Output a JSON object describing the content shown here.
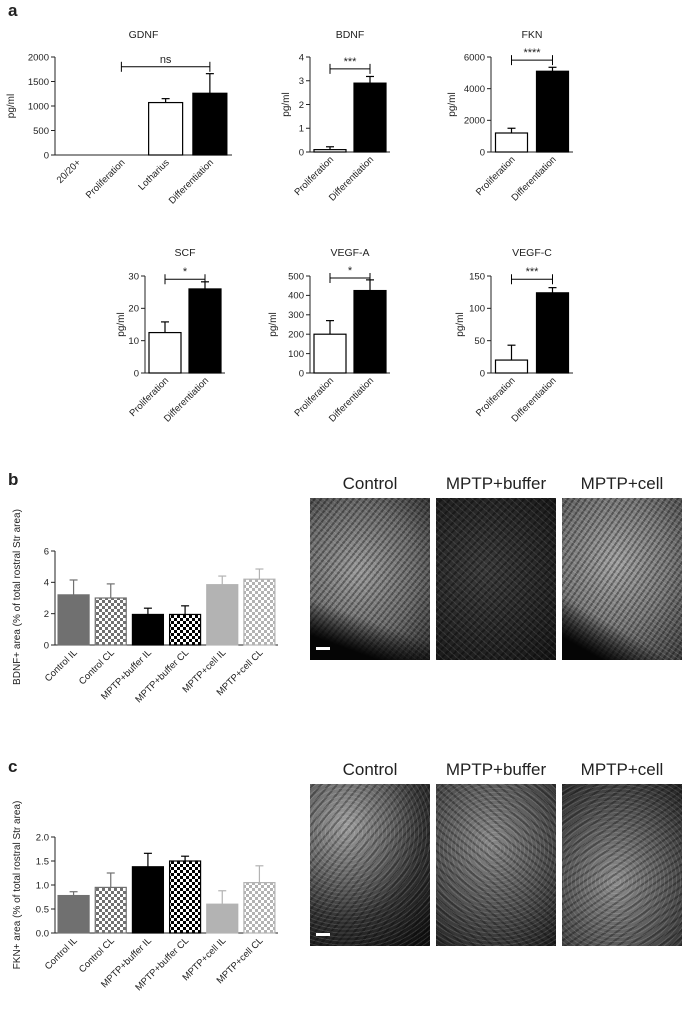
{
  "figure": {
    "panels": {
      "a": "a",
      "b": "b",
      "c": "c"
    },
    "micrograph_labels": [
      "Control",
      "MPTP+buffer",
      "MPTP+cell"
    ]
  },
  "colors": {
    "white_bar": "#ffffff",
    "black_bar": "#000000",
    "dark_gray": "#707070",
    "light_gray": "#b3b3b3"
  },
  "chart_data": [
    {
      "id": "gdnf",
      "type": "bar",
      "title": "GDNF",
      "ylabel": "pg/ml",
      "categories": [
        "20/20+",
        "Proliferation",
        "Lotharius",
        "Differentiation"
      ],
      "values": [
        0,
        0,
        1070,
        1260
      ],
      "errors": [
        0,
        0,
        80,
        400
      ],
      "fills": [
        "white",
        "white",
        "white",
        "black"
      ],
      "ylim": [
        0,
        2000
      ],
      "yticks": [
        0,
        500,
        1000,
        1500,
        2000
      ],
      "significance": [
        {
          "from": 1,
          "to": 3,
          "label": "ns",
          "y": 1800
        }
      ]
    },
    {
      "id": "bdnf",
      "type": "bar",
      "title": "BDNF",
      "ylabel": "pg/ml",
      "categories": [
        "Proliferation",
        "Differentiation"
      ],
      "values": [
        0.1,
        2.9
      ],
      "errors": [
        0.12,
        0.28
      ],
      "fills": [
        "white",
        "black"
      ],
      "ylim": [
        0,
        4
      ],
      "yticks": [
        0,
        1,
        2,
        3,
        4
      ],
      "significance": [
        {
          "from": 0,
          "to": 1,
          "label": "***",
          "y": 3.5
        }
      ]
    },
    {
      "id": "fkn",
      "type": "bar",
      "title": "FKN",
      "ylabel": "pg/ml",
      "categories": [
        "Proliferation",
        "Differentiation"
      ],
      "values": [
        1200,
        5100
      ],
      "errors": [
        300,
        250
      ],
      "fills": [
        "white",
        "black"
      ],
      "ylim": [
        0,
        6000
      ],
      "yticks": [
        0,
        2000,
        4000,
        6000
      ],
      "significance": [
        {
          "from": 0,
          "to": 1,
          "label": "****",
          "y": 5800
        }
      ]
    },
    {
      "id": "scf",
      "type": "bar",
      "title": "SCF",
      "ylabel": "pg/ml",
      "categories": [
        "Proliferation",
        "Differentiation"
      ],
      "values": [
        12.5,
        26
      ],
      "errors": [
        3.3,
        2.2
      ],
      "fills": [
        "white",
        "black"
      ],
      "ylim": [
        0,
        30
      ],
      "yticks": [
        0,
        10,
        20,
        30
      ],
      "significance": [
        {
          "from": 0,
          "to": 1,
          "label": "*",
          "y": 29
        }
      ]
    },
    {
      "id": "vegfa",
      "type": "bar",
      "title": "VEGF-A",
      "ylabel": "pg/ml",
      "categories": [
        "Proliferation",
        "Differentiation"
      ],
      "values": [
        200,
        425
      ],
      "errors": [
        70,
        55
      ],
      "fills": [
        "white",
        "black"
      ],
      "ylim": [
        0,
        500
      ],
      "yticks": [
        0,
        100,
        200,
        300,
        400,
        500
      ],
      "significance": [
        {
          "from": 0,
          "to": 1,
          "label": "*",
          "y": 490
        }
      ]
    },
    {
      "id": "vegfc",
      "type": "bar",
      "title": "VEGF-C",
      "ylabel": "pg/ml",
      "categories": [
        "Proliferation",
        "Differentiation"
      ],
      "values": [
        20,
        124
      ],
      "errors": [
        23,
        8
      ],
      "fills": [
        "white",
        "black"
      ],
      "ylim": [
        0,
        150
      ],
      "yticks": [
        0,
        50,
        100,
        150
      ],
      "significance": [
        {
          "from": 0,
          "to": 1,
          "label": "***",
          "y": 145
        }
      ]
    },
    {
      "id": "bdnf_area",
      "type": "bar",
      "title": "",
      "ylabel": "BDNF+ area (% of total rostral Str area)",
      "categories": [
        "Control IL",
        "Control CL",
        "MPTP+buffer IL",
        "MPTP+buffer CL",
        "MPTP+cell IL",
        "MPTP+cell CL"
      ],
      "values": [
        3.2,
        3.0,
        1.95,
        1.95,
        3.85,
        4.2
      ],
      "errors": [
        0.95,
        0.9,
        0.4,
        0.55,
        0.55,
        0.65
      ],
      "fills": [
        "dark",
        "dark-check",
        "black",
        "black-check",
        "light",
        "light-check"
      ],
      "ylim": [
        0,
        6
      ],
      "yticks": [
        0,
        2,
        4,
        6
      ],
      "significance": []
    },
    {
      "id": "fkn_area",
      "type": "bar",
      "title": "",
      "ylabel": "FKN+ area (% of total rostral Str area)",
      "categories": [
        "Control IL",
        "Control CL",
        "MPTP+buffer IL",
        "MPTP+buffer CL",
        "MPTP+cell IL",
        "MPTP+cell CL"
      ],
      "values": [
        0.78,
        0.95,
        1.38,
        1.5,
        0.6,
        1.05
      ],
      "errors": [
        0.08,
        0.3,
        0.28,
        0.1,
        0.28,
        0.35
      ],
      "fills": [
        "dark",
        "dark-check",
        "black",
        "black-check",
        "light",
        "light-check"
      ],
      "ylim": [
        0,
        2.0
      ],
      "yticks": [
        0,
        0.5,
        1.0,
        1.5,
        2.0
      ],
      "ytick_labels": [
        "0.0",
        "0.5",
        "1.0",
        "1.5",
        "2.0"
      ],
      "significance": []
    }
  ]
}
